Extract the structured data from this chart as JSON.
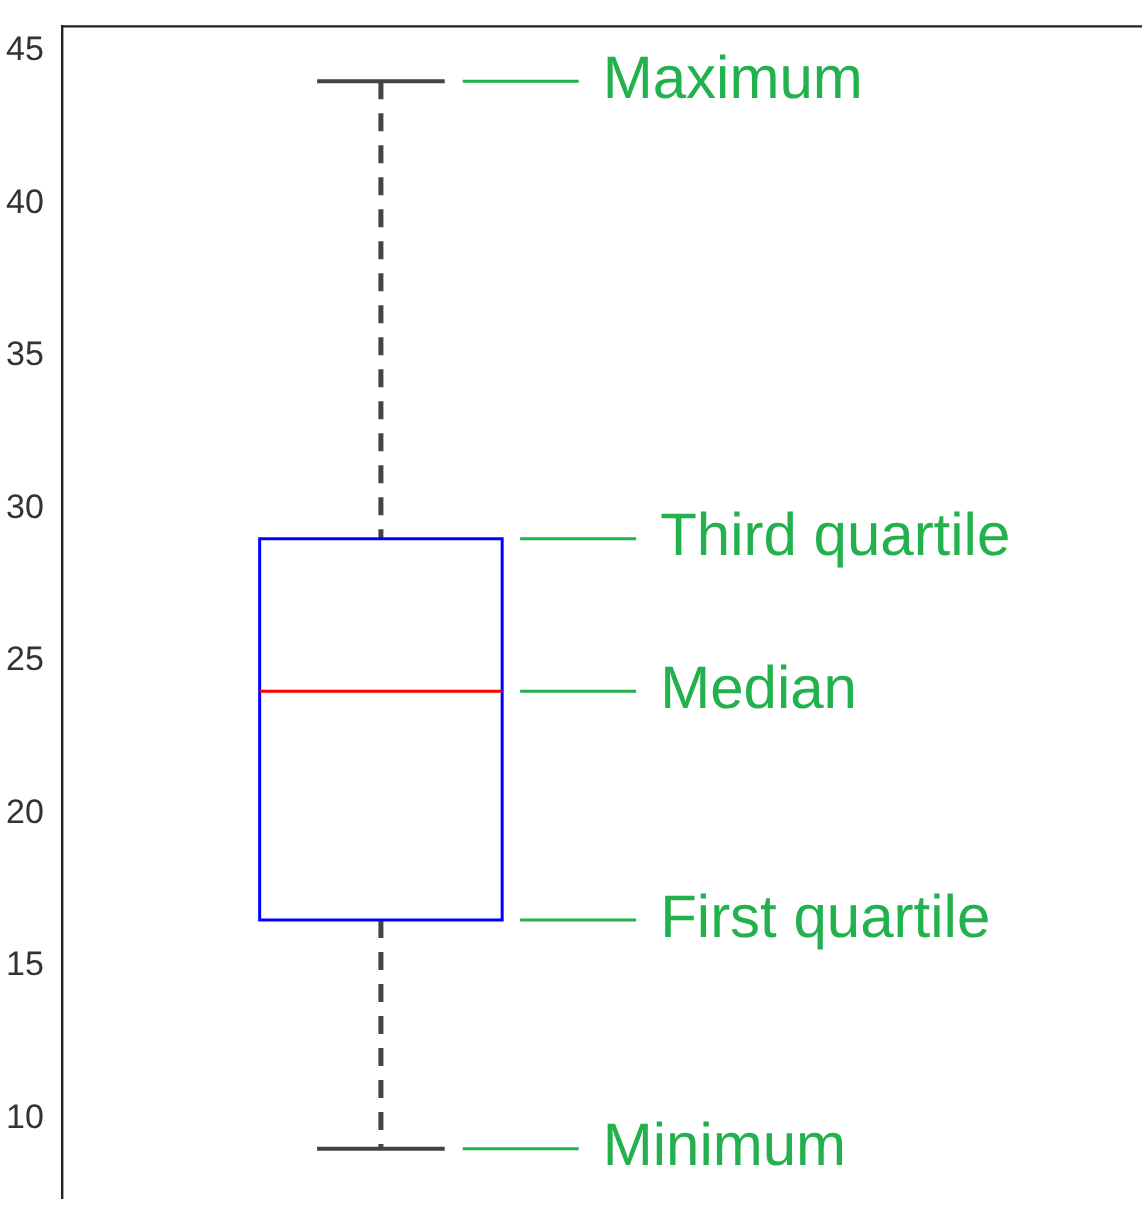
{
  "chart_data": {
    "type": "box",
    "categories": [
      null
    ],
    "boxes": [
      {
        "low": 9,
        "q1": 16.5,
        "median": 24,
        "q3": 29,
        "high": 44
      }
    ],
    "color": "#0000ff",
    "line_style": "dashed",
    "ylim": [
      7.4,
      45.8
    ],
    "yticks": [
      10,
      15,
      20,
      25,
      30,
      35,
      40,
      45
    ],
    "grid": false,
    "legend": false,
    "tick_labels": "y",
    "annotations": [
      "Maximum",
      "Third quartile",
      "Median",
      "First quartile",
      "Minimum"
    ]
  }
}
